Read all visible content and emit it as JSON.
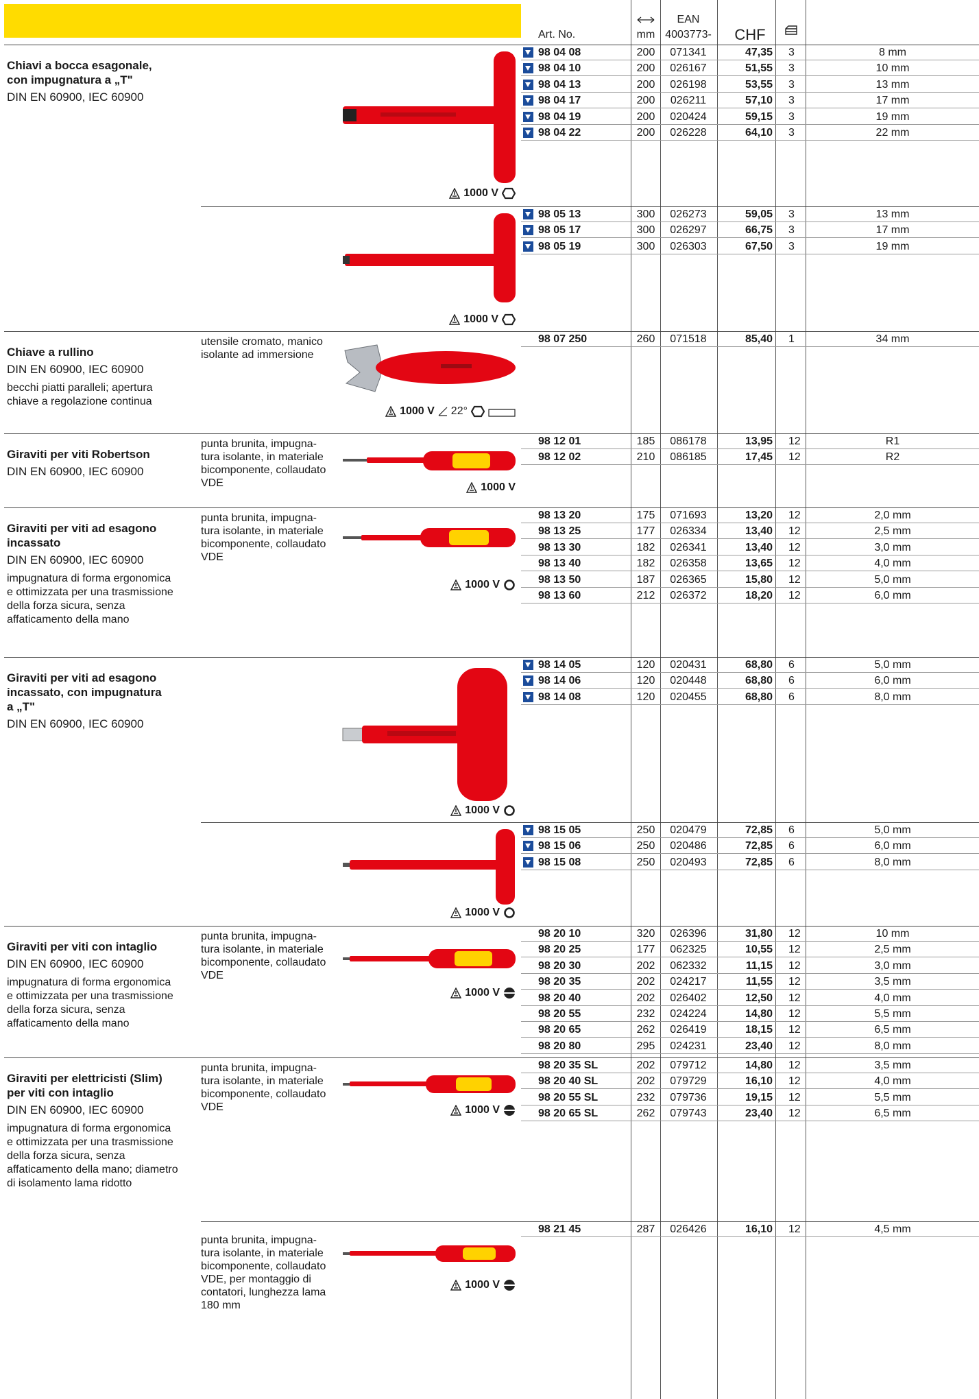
{
  "header": {
    "art_no": "Art. No.",
    "length_unit": "mm",
    "ean": "EAN",
    "ean_prefix": "4003773-",
    "currency": "CHF"
  },
  "sections": [
    {
      "title": [
        "Chiavi a bocca esagonale,",
        "con impugnatura a „T\""
      ],
      "norm": "DIN EN 60900, IEC 60900",
      "rating": "1000 V",
      "rows": [
        {
          "art": "98 04 08",
          "new": true,
          "mm": 200,
          "ean": "071341",
          "chf": "47,35",
          "qty": 3,
          "size": "8 mm"
        },
        {
          "art": "98 04 10",
          "new": true,
          "mm": 200,
          "ean": "026167",
          "chf": "51,55",
          "qty": 3,
          "size": "10 mm"
        },
        {
          "art": "98 04 13",
          "new": true,
          "mm": 200,
          "ean": "026198",
          "chf": "53,55",
          "qty": 3,
          "size": "13 mm"
        },
        {
          "art": "98 04 17",
          "new": true,
          "mm": 200,
          "ean": "026211",
          "chf": "57,10",
          "qty": 3,
          "size": "17 mm"
        },
        {
          "art": "98 04 19",
          "new": true,
          "mm": 200,
          "ean": "020424",
          "chf": "59,15",
          "qty": 3,
          "size": "19 mm"
        },
        {
          "art": "98 04 22",
          "new": true,
          "mm": 200,
          "ean": "026228",
          "chf": "64,10",
          "qty": 3,
          "size": "22 mm"
        }
      ]
    },
    {
      "rating": "1000 V",
      "rows": [
        {
          "art": "98 05 13",
          "new": true,
          "mm": 300,
          "ean": "026273",
          "chf": "59,05",
          "qty": 3,
          "size": "13 mm"
        },
        {
          "art": "98 05 17",
          "new": true,
          "mm": 300,
          "ean": "026297",
          "chf": "66,75",
          "qty": 3,
          "size": "17 mm"
        },
        {
          "art": "98 05 19",
          "new": true,
          "mm": 300,
          "ean": "026303",
          "chf": "67,50",
          "qty": 3,
          "size": "19 mm"
        }
      ]
    },
    {
      "title": [
        "Chiave a rullino"
      ],
      "norm": "DIN EN 60900, IEC 60900",
      "description": [
        "becchi piatti paralleli; apertura",
        "chiave a regolazione continua"
      ],
      "features": [
        "utensile cromato, manico",
        "isolante ad immersione"
      ],
      "rating": "1000 V",
      "angle": "22°",
      "rows": [
        {
          "art": "98 07 250",
          "new": false,
          "mm": 260,
          "ean": "071518",
          "chf": "85,40",
          "qty": 1,
          "size": "34 mm"
        }
      ]
    },
    {
      "title": [
        "Giraviti per viti Robertson"
      ],
      "norm": "DIN EN 60900, IEC 60900",
      "features": [
        "punta brunita, impugna-",
        "tura isolante, in materiale",
        "bicomponente, collaudato",
        "VDE"
      ],
      "rating": "1000 V",
      "rows": [
        {
          "art": "98 12 01",
          "new": false,
          "mm": 185,
          "ean": "086178",
          "chf": "13,95",
          "qty": 12,
          "size": "R1"
        },
        {
          "art": "98 12 02",
          "new": false,
          "mm": 210,
          "ean": "086185",
          "chf": "17,45",
          "qty": 12,
          "size": "R2"
        }
      ]
    },
    {
      "title": [
        "Giraviti per viti ad esagono",
        "incassato"
      ],
      "norm": "DIN EN 60900, IEC 60900",
      "description": [
        "impugnatura di forma ergonomica",
        "e ottimizzata per una trasmissione",
        "della forza sicura, senza",
        "affaticamento della mano"
      ],
      "features": [
        "punta brunita, impugna-",
        "tura isolante, in materiale",
        "bicomponente, collaudato",
        "VDE"
      ],
      "rating": "1000 V",
      "rows": [
        {
          "art": "98 13 20",
          "new": false,
          "mm": 175,
          "ean": "071693",
          "chf": "13,20",
          "qty": 12,
          "size": "2,0 mm"
        },
        {
          "art": "98 13 25",
          "new": false,
          "mm": 177,
          "ean": "026334",
          "chf": "13,40",
          "qty": 12,
          "size": "2,5 mm"
        },
        {
          "art": "98 13 30",
          "new": false,
          "mm": 182,
          "ean": "026341",
          "chf": "13,40",
          "qty": 12,
          "size": "3,0 mm"
        },
        {
          "art": "98 13 40",
          "new": false,
          "mm": 182,
          "ean": "026358",
          "chf": "13,65",
          "qty": 12,
          "size": "4,0 mm"
        },
        {
          "art": "98 13 50",
          "new": false,
          "mm": 187,
          "ean": "026365",
          "chf": "15,80",
          "qty": 12,
          "size": "5,0 mm"
        },
        {
          "art": "98 13 60",
          "new": false,
          "mm": 212,
          "ean": "026372",
          "chf": "18,20",
          "qty": 12,
          "size": "6,0 mm"
        }
      ]
    },
    {
      "title": [
        "Giraviti per viti ad esagono",
        "incassato, con impugnatura",
        "a „T\""
      ],
      "norm": "DIN EN 60900, IEC 60900",
      "rating": "1000 V",
      "rows": [
        {
          "art": "98 14 05",
          "new": true,
          "mm": 120,
          "ean": "020431",
          "chf": "68,80",
          "qty": 6,
          "size": "5,0 mm"
        },
        {
          "art": "98 14 06",
          "new": true,
          "mm": 120,
          "ean": "020448",
          "chf": "68,80",
          "qty": 6,
          "size": "6,0 mm"
        },
        {
          "art": "98 14 08",
          "new": true,
          "mm": 120,
          "ean": "020455",
          "chf": "68,80",
          "qty": 6,
          "size": "8,0 mm"
        }
      ]
    },
    {
      "rating": "1000 V",
      "rows": [
        {
          "art": "98 15 05",
          "new": true,
          "mm": 250,
          "ean": "020479",
          "chf": "72,85",
          "qty": 6,
          "size": "5,0 mm"
        },
        {
          "art": "98 15 06",
          "new": true,
          "mm": 250,
          "ean": "020486",
          "chf": "72,85",
          "qty": 6,
          "size": "6,0 mm"
        },
        {
          "art": "98 15 08",
          "new": true,
          "mm": 250,
          "ean": "020493",
          "chf": "72,85",
          "qty": 6,
          "size": "8,0 mm"
        }
      ]
    },
    {
      "title": [
        "Giraviti per viti con intaglio"
      ],
      "norm": "DIN EN 60900, IEC 60900",
      "description": [
        "impugnatura di forma ergonomica",
        "e ottimizzata per una trasmissione",
        "della forza sicura, senza",
        "affaticamento della mano"
      ],
      "features": [
        "punta brunita, impugna-",
        "tura isolante, in materiale",
        "bicomponente, collaudato",
        "VDE"
      ],
      "rating": "1000 V",
      "rows": [
        {
          "art": "98 20 10",
          "new": false,
          "mm": 320,
          "ean": "026396",
          "chf": "31,80",
          "qty": 12,
          "size": "10 mm"
        },
        {
          "art": "98 20 25",
          "new": false,
          "mm": 177,
          "ean": "062325",
          "chf": "10,55",
          "qty": 12,
          "size": "2,5 mm"
        },
        {
          "art": "98 20 30",
          "new": false,
          "mm": 202,
          "ean": "062332",
          "chf": "11,15",
          "qty": 12,
          "size": "3,0 mm"
        },
        {
          "art": "98 20 35",
          "new": false,
          "mm": 202,
          "ean": "024217",
          "chf": "11,55",
          "qty": 12,
          "size": "3,5 mm"
        },
        {
          "art": "98 20 40",
          "new": false,
          "mm": 202,
          "ean": "026402",
          "chf": "12,50",
          "qty": 12,
          "size": "4,0 mm"
        },
        {
          "art": "98 20 55",
          "new": false,
          "mm": 232,
          "ean": "024224",
          "chf": "14,80",
          "qty": 12,
          "size": "5,5 mm"
        },
        {
          "art": "98 20 65",
          "new": false,
          "mm": 262,
          "ean": "026419",
          "chf": "18,15",
          "qty": 12,
          "size": "6,5 mm"
        },
        {
          "art": "98 20 80",
          "new": false,
          "mm": 295,
          "ean": "024231",
          "chf": "23,40",
          "qty": 12,
          "size": "8,0 mm"
        }
      ]
    },
    {
      "title": [
        "Giraviti per elettricisti (Slim)",
        "per viti con intaglio"
      ],
      "norm": "DIN EN 60900, IEC 60900",
      "description": [
        "impugnatura di forma ergonomica",
        "e ottimizzata per una trasmissione",
        "della forza sicura, senza",
        "affaticamento della mano; diametro",
        "di isolamento lama ridotto"
      ],
      "features": [
        "punta brunita, impugna-",
        "tura isolante, in materiale",
        "bicomponente, collaudato",
        "VDE"
      ],
      "rating": "1000 V",
      "rows": [
        {
          "art": "98 20 35 SL",
          "new": false,
          "mm": 202,
          "ean": "079712",
          "chf": "14,80",
          "qty": 12,
          "size": "3,5 mm"
        },
        {
          "art": "98 20 40 SL",
          "new": false,
          "mm": 202,
          "ean": "079729",
          "chf": "16,10",
          "qty": 12,
          "size": "4,0 mm"
        },
        {
          "art": "98 20 55 SL",
          "new": false,
          "mm": 232,
          "ean": "079736",
          "chf": "19,15",
          "qty": 12,
          "size": "5,5 mm"
        },
        {
          "art": "98 20 65 SL",
          "new": false,
          "mm": 262,
          "ean": "079743",
          "chf": "23,40",
          "qty": 12,
          "size": "6,5 mm"
        }
      ]
    },
    {
      "features": [
        "punta brunita, impugna-",
        "tura isolante, in materiale",
        "bicomponente, collaudato",
        "VDE, per montaggio di",
        "contatori, lunghezza lama",
        "180 mm"
      ],
      "rating": "1000 V",
      "rows": [
        {
          "art": "98 21 45",
          "new": false,
          "mm": 287,
          "ean": "026426",
          "chf": "16,10",
          "qty": 12,
          "size": "4,5 mm"
        }
      ]
    }
  ]
}
